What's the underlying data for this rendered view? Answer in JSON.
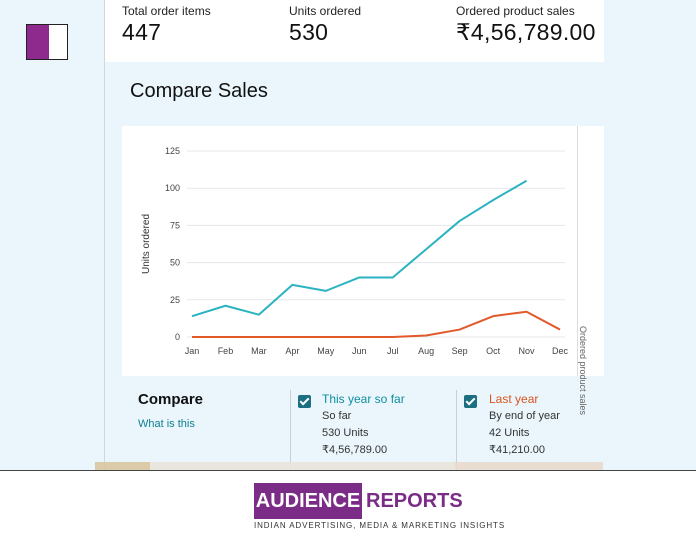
{
  "stats": [
    {
      "label": "Total order items",
      "value": "447"
    },
    {
      "label": "Units ordered",
      "value": "530"
    },
    {
      "label": "Ordered product sales",
      "value": "₹4,56,789.00"
    }
  ],
  "compare_title": "Compare Sales",
  "chart_data": {
    "type": "line",
    "categories": [
      "Jan",
      "Feb",
      "Mar",
      "Apr",
      "May",
      "Jun",
      "Jul",
      "Aug",
      "Sep",
      "Oct",
      "Nov",
      "Dec"
    ],
    "ylabel": "Units ordered",
    "right_ylabel": "Ordered product sales",
    "ylim": [
      0,
      125
    ],
    "yticks": [
      0,
      25,
      50,
      75,
      100,
      125
    ],
    "grid": true,
    "series": [
      {
        "name": "This year so far",
        "color": "#2bb3c2",
        "values": [
          14,
          21,
          15,
          35,
          31,
          40,
          40,
          59,
          78,
          92,
          105,
          null
        ]
      },
      {
        "name": "Last year",
        "color": "#e05a2b",
        "values": [
          0,
          0,
          0,
          0,
          0,
          0,
          0,
          1,
          5,
          14,
          17,
          5
        ]
      }
    ]
  },
  "compare": {
    "heading": "Compare",
    "link": "What is this",
    "series": [
      {
        "title": "This year so far",
        "subtitle": "So far",
        "units": "530 Units",
        "sales": "₹4,56,789.00",
        "color": "#0f8ea0"
      },
      {
        "title": "Last year",
        "subtitle": "By end of year",
        "units": "42 Units",
        "sales": "₹41,210.00",
        "color": "#d9541e"
      }
    ]
  },
  "brand": {
    "logo_left": "AUDIENCE",
    "logo_right": "REPORTS",
    "tagline": "INDIAN ADVERTISING, MEDIA & MARKETING INSIGHTS",
    "color": "#7a2c86"
  }
}
